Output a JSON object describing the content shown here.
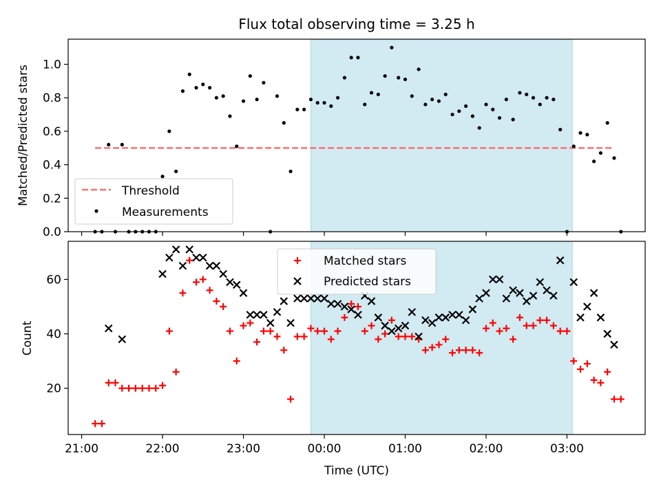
{
  "figure": {
    "title": "Flux total observing time = 3.25 h",
    "xlabel": "Time (UTC)",
    "x_ticks": [
      "21:00",
      "22:00",
      "23:00",
      "00:00",
      "01:00",
      "02:00",
      "03:00"
    ]
  },
  "chart_data": [
    {
      "type": "scatter",
      "ylabel": "Matched/Predicted stars",
      "ylim": [
        0,
        1.15
      ],
      "y_ticks": [
        "0.0",
        "0.2",
        "0.4",
        "0.6",
        "0.8",
        "1.0"
      ],
      "x_unit": "minutes since 21:00 UTC",
      "xlim": [
        -10,
        418
      ],
      "shaded_span": [
        170,
        364
      ],
      "shaded_color": "#add8e6",
      "legend": {
        "location": "lower left",
        "items": [
          {
            "label": "Threshold"
          },
          {
            "label": "Measurements"
          }
        ]
      },
      "threshold": {
        "name": "Threshold",
        "y": 0.5,
        "x_range": [
          10,
          395
        ],
        "color": "#f87171",
        "style": "dashed"
      },
      "series": [
        {
          "name": "Measurements",
          "color": "#000000",
          "marker": "dot",
          "points": [
            [
              10,
              0
            ],
            [
              15,
              0
            ],
            [
              20,
              0.52
            ],
            [
              25,
              0
            ],
            [
              30,
              0.52
            ],
            [
              35,
              0
            ],
            [
              40,
              0
            ],
            [
              45,
              0
            ],
            [
              50,
              0
            ],
            [
              55,
              0
            ],
            [
              60,
              0.33
            ],
            [
              65,
              0.6
            ],
            [
              70,
              0.36
            ],
            [
              75,
              0.84
            ],
            [
              80,
              0.94
            ],
            [
              85,
              0.86
            ],
            [
              90,
              0.88
            ],
            [
              95,
              0.86
            ],
            [
              100,
              0.8
            ],
            [
              105,
              0.81
            ],
            [
              110,
              0.69
            ],
            [
              115,
              0.51
            ],
            [
              120,
              0.78
            ],
            [
              125,
              0.93
            ],
            [
              130,
              0.79
            ],
            [
              135,
              0.89
            ],
            [
              140,
              0
            ],
            [
              145,
              0.81
            ],
            [
              150,
              0.65
            ],
            [
              155,
              0.36
            ],
            [
              160,
              0.73
            ],
            [
              165,
              0.73
            ],
            [
              170,
              0.79
            ],
            [
              175,
              0.77
            ],
            [
              180,
              0.77
            ],
            [
              185,
              0.75
            ],
            [
              190,
              0.8
            ],
            [
              195,
              0.92
            ],
            [
              200,
              1.04
            ],
            [
              205,
              1.04
            ],
            [
              210,
              0.76
            ],
            [
              215,
              0.83
            ],
            [
              220,
              0.82
            ],
            [
              225,
              0.93
            ],
            [
              230,
              1.1
            ],
            [
              235,
              0.92
            ],
            [
              240,
              0.91
            ],
            [
              245,
              0.81
            ],
            [
              250,
              0.97
            ],
            [
              255,
              0.76
            ],
            [
              260,
              0.79
            ],
            [
              265,
              0.78
            ],
            [
              270,
              0.82
            ],
            [
              275,
              0.7
            ],
            [
              280,
              0.72
            ],
            [
              285,
              0.75
            ],
            [
              290,
              0.69
            ],
            [
              295,
              0.62
            ],
            [
              300,
              0.76
            ],
            [
              305,
              0.73
            ],
            [
              310,
              0.68
            ],
            [
              315,
              0.79
            ],
            [
              320,
              0.67
            ],
            [
              325,
              0.83
            ],
            [
              330,
              0.82
            ],
            [
              335,
              0.8
            ],
            [
              340,
              0.76
            ],
            [
              345,
              0.8
            ],
            [
              350,
              0.79
            ],
            [
              355,
              0.61
            ],
            [
              360,
              0
            ],
            [
              365,
              0.51
            ],
            [
              370,
              0.59
            ],
            [
              375,
              0.58
            ],
            [
              380,
              0.42
            ],
            [
              385,
              0.47
            ],
            [
              390,
              0.65
            ],
            [
              395,
              0.44
            ],
            [
              400,
              0
            ]
          ]
        }
      ]
    },
    {
      "type": "scatter",
      "ylabel": "Count",
      "ylim": [
        3,
        74
      ],
      "y_ticks": [
        "20",
        "40",
        "60"
      ],
      "x_unit": "minutes since 21:00 UTC",
      "xlim": [
        -10,
        418
      ],
      "shaded_span": [
        170,
        364
      ],
      "shaded_color": "#add8e6",
      "legend": {
        "location": "upper center",
        "items": [
          {
            "label": "Matched stars"
          },
          {
            "label": "Predicted stars"
          }
        ]
      },
      "series": [
        {
          "name": "Matched stars",
          "color": "#ff0000",
          "marker": "plus",
          "points": [
            [
              10,
              7
            ],
            [
              15,
              7
            ],
            [
              20,
              22
            ],
            [
              25,
              22
            ],
            [
              30,
              20
            ],
            [
              35,
              20
            ],
            [
              40,
              20
            ],
            [
              45,
              20
            ],
            [
              50,
              20
            ],
            [
              55,
              20
            ],
            [
              60,
              21
            ],
            [
              65,
              41
            ],
            [
              70,
              26
            ],
            [
              75,
              55
            ],
            [
              80,
              67
            ],
            [
              85,
              59
            ],
            [
              90,
              60
            ],
            [
              95,
              56
            ],
            [
              100,
              52
            ],
            [
              105,
              50
            ],
            [
              110,
              41
            ],
            [
              115,
              30
            ],
            [
              120,
              43
            ],
            [
              125,
              44
            ],
            [
              130,
              37
            ],
            [
              135,
              41
            ],
            [
              140,
              41
            ],
            [
              145,
              39
            ],
            [
              150,
              34
            ],
            [
              155,
              16
            ],
            [
              160,
              39
            ],
            [
              165,
              39
            ],
            [
              170,
              42
            ],
            [
              175,
              41
            ],
            [
              180,
              41
            ],
            [
              185,
              38
            ],
            [
              190,
              41
            ],
            [
              195,
              46
            ],
            [
              200,
              51
            ],
            [
              205,
              50
            ],
            [
              210,
              41
            ],
            [
              215,
              43
            ],
            [
              220,
              38
            ],
            [
              225,
              40
            ],
            [
              230,
              45
            ],
            [
              235,
              39
            ],
            [
              240,
              39
            ],
            [
              245,
              39
            ],
            [
              250,
              38
            ],
            [
              255,
              34
            ],
            [
              260,
              35
            ],
            [
              265,
              36
            ],
            [
              270,
              38
            ],
            [
              275,
              33
            ],
            [
              280,
              34
            ],
            [
              285,
              34
            ],
            [
              290,
              34
            ],
            [
              295,
              33
            ],
            [
              300,
              42
            ],
            [
              305,
              44
            ],
            [
              310,
              41
            ],
            [
              315,
              42
            ],
            [
              320,
              38
            ],
            [
              325,
              46
            ],
            [
              330,
              43
            ],
            [
              335,
              43
            ],
            [
              340,
              45
            ],
            [
              345,
              45
            ],
            [
              350,
              43
            ],
            [
              355,
              41
            ],
            [
              360,
              41
            ],
            [
              365,
              30
            ],
            [
              370,
              27
            ],
            [
              375,
              29
            ],
            [
              380,
              23
            ],
            [
              385,
              22
            ],
            [
              390,
              26
            ],
            [
              395,
              16
            ],
            [
              400,
              16
            ]
          ]
        },
        {
          "name": "Predicted stars",
          "color": "#000000",
          "marker": "x",
          "points": [
            [
              20,
              42
            ],
            [
              30,
              38
            ],
            [
              60,
              62
            ],
            [
              65,
              68
            ],
            [
              70,
              71
            ],
            [
              75,
              65
            ],
            [
              80,
              71
            ],
            [
              85,
              68
            ],
            [
              90,
              68
            ],
            [
              95,
              65
            ],
            [
              100,
              65
            ],
            [
              105,
              62
            ],
            [
              110,
              59
            ],
            [
              115,
              58
            ],
            [
              120,
              55
            ],
            [
              125,
              47
            ],
            [
              130,
              47
            ],
            [
              135,
              47
            ],
            [
              140,
              44
            ],
            [
              145,
              48
            ],
            [
              150,
              52
            ],
            [
              155,
              44
            ],
            [
              160,
              53
            ],
            [
              165,
              53
            ],
            [
              170,
              53
            ],
            [
              175,
              53
            ],
            [
              180,
              53
            ],
            [
              185,
              51
            ],
            [
              190,
              51
            ],
            [
              195,
              50
            ],
            [
              200,
              49
            ],
            [
              205,
              47
            ],
            [
              210,
              54
            ],
            [
              215,
              52
            ],
            [
              220,
              46
            ],
            [
              225,
              43
            ],
            [
              230,
              41
            ],
            [
              235,
              42
            ],
            [
              240,
              43
            ],
            [
              245,
              48
            ],
            [
              250,
              39
            ],
            [
              255,
              45
            ],
            [
              260,
              44
            ],
            [
              265,
              46
            ],
            [
              270,
              46
            ],
            [
              275,
              47
            ],
            [
              280,
              47
            ],
            [
              285,
              45
            ],
            [
              290,
              49
            ],
            [
              295,
              53
            ],
            [
              300,
              55
            ],
            [
              305,
              60
            ],
            [
              310,
              60
            ],
            [
              315,
              53
            ],
            [
              320,
              56
            ],
            [
              325,
              55
            ],
            [
              330,
              52
            ],
            [
              335,
              54
            ],
            [
              340,
              59
            ],
            [
              345,
              56
            ],
            [
              350,
              54
            ],
            [
              355,
              67
            ],
            [
              365,
              59
            ],
            [
              370,
              46
            ],
            [
              375,
              50
            ],
            [
              380,
              55
            ],
            [
              385,
              46
            ],
            [
              390,
              40
            ],
            [
              395,
              36
            ]
          ]
        }
      ]
    }
  ]
}
